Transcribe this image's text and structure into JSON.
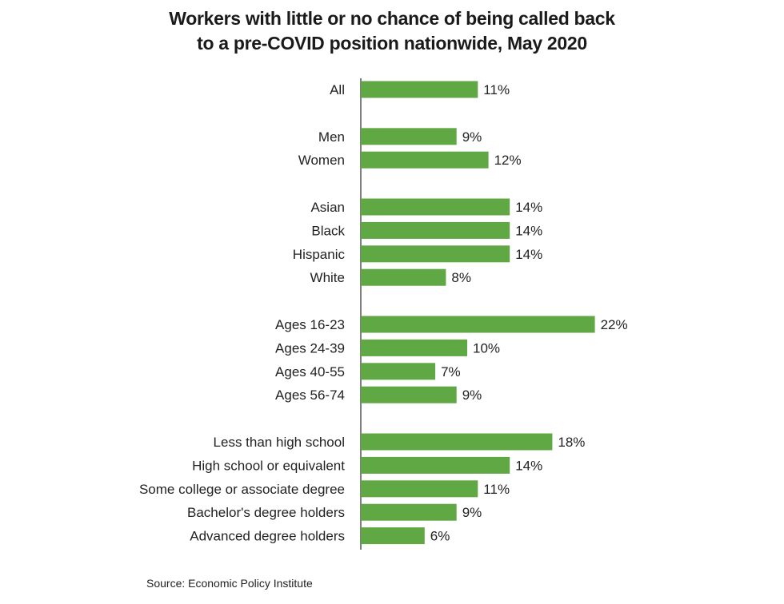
{
  "chart_data": {
    "type": "bar",
    "orientation": "horizontal",
    "title_lines": [
      "Workers with little or no chance of being called back",
      "to a pre-COVID position nationwide, May 2020"
    ],
    "xlabel": "",
    "ylabel": "",
    "xlim": [
      0,
      22
    ],
    "grid": false,
    "legend": "none",
    "bar_color": "#5fa844",
    "value_suffix": "%",
    "groups": [
      {
        "categories": [
          "All"
        ],
        "values": [
          11
        ]
      },
      {
        "categories": [
          "Men",
          "Women"
        ],
        "values": [
          9,
          12
        ]
      },
      {
        "categories": [
          "Asian",
          "Black",
          "Hispanic",
          "White"
        ],
        "values": [
          14,
          14,
          14,
          8
        ]
      },
      {
        "categories": [
          "Ages 16-23",
          "Ages 24-39",
          "Ages 40-55",
          "Ages 56-74"
        ],
        "values": [
          22,
          10,
          7,
          9
        ]
      },
      {
        "categories": [
          "Less than high school",
          "High school or equivalent",
          "Some college or associate degree",
          "Bachelor's degree holders",
          "Advanced degree holders"
        ],
        "values": [
          18,
          14,
          11,
          9,
          6
        ]
      }
    ],
    "value_labels": [
      [
        "11%"
      ],
      [
        "9%",
        "12%"
      ],
      [
        "14%",
        "14%",
        "14%",
        "8%"
      ],
      [
        "22%",
        "10%",
        "7%",
        "9%"
      ],
      [
        "18%",
        "14%",
        "11%",
        "9%",
        "6%"
      ]
    ]
  },
  "source": "Source: Economic Policy Institute"
}
